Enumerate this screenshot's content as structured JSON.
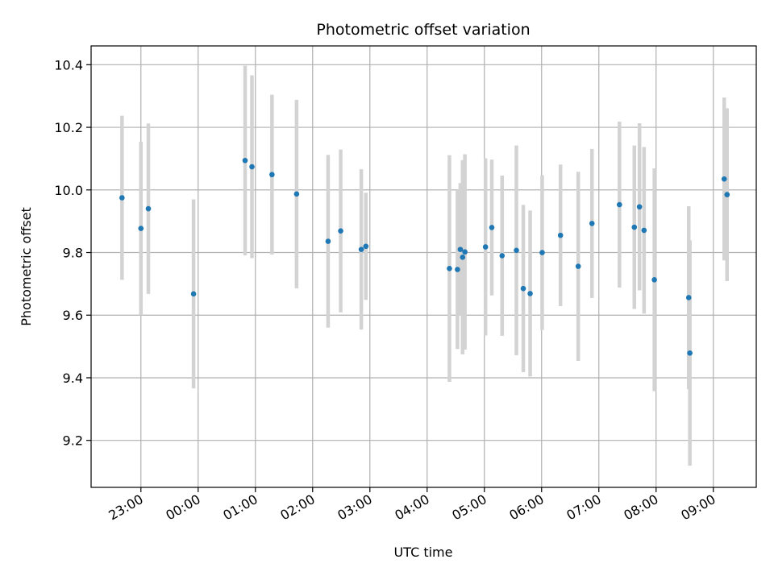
{
  "chart_data": {
    "type": "scatter",
    "title": "Photometric offset variation",
    "xlabel": "UTC time",
    "ylabel": "Photometric offset",
    "x_ticks": [
      "23:00",
      "00:00",
      "01:00",
      "02:00",
      "03:00",
      "04:00",
      "05:00",
      "06:00",
      "07:00",
      "08:00",
      "09:00"
    ],
    "xlim": [
      22.13,
      33.75
    ],
    "ylim": [
      9.05,
      10.46
    ],
    "y_ticks": [
      "9.2",
      "9.4",
      "9.6",
      "9.8",
      "10.0",
      "10.2",
      "10.4"
    ],
    "grid": true,
    "colors": {
      "point": "#1f77b4",
      "errorbar": "#d3d3d3",
      "grid": "#b0b0b0"
    },
    "points": [
      {
        "x": 22.67,
        "y": 9.975,
        "err": 0.262
      },
      {
        "x": 23.0,
        "y": 9.877,
        "err": 0.277
      },
      {
        "x": 23.13,
        "y": 9.94,
        "err": 0.272
      },
      {
        "x": 23.92,
        "y": 9.668,
        "err": 0.302
      },
      {
        "x": 24.82,
        "y": 10.094,
        "err": 0.303
      },
      {
        "x": 24.94,
        "y": 10.074,
        "err": 0.292
      },
      {
        "x": 25.29,
        "y": 10.049,
        "err": 0.255
      },
      {
        "x": 25.72,
        "y": 9.987,
        "err": 0.301
      },
      {
        "x": 26.27,
        "y": 9.836,
        "err": 0.276
      },
      {
        "x": 26.49,
        "y": 9.869,
        "err": 0.26
      },
      {
        "x": 26.85,
        "y": 9.81,
        "err": 0.256
      },
      {
        "x": 26.93,
        "y": 9.82,
        "err": 0.171
      },
      {
        "x": 28.39,
        "y": 9.749,
        "err": 0.362
      },
      {
        "x": 28.53,
        "y": 9.746,
        "err": 0.254
      },
      {
        "x": 28.58,
        "y": 9.81,
        "err": 0.212
      },
      {
        "x": 28.62,
        "y": 9.785,
        "err": 0.31
      },
      {
        "x": 28.66,
        "y": 9.802,
        "err": 0.312
      },
      {
        "x": 29.02,
        "y": 9.818,
        "err": 0.283
      },
      {
        "x": 29.13,
        "y": 9.88,
        "err": 0.217
      },
      {
        "x": 29.31,
        "y": 9.79,
        "err": 0.256
      },
      {
        "x": 29.56,
        "y": 9.807,
        "err": 0.335
      },
      {
        "x": 29.68,
        "y": 9.685,
        "err": 0.267
      },
      {
        "x": 29.8,
        "y": 9.669,
        "err": 0.265
      },
      {
        "x": 30.01,
        "y": 9.8,
        "err": 0.247
      },
      {
        "x": 30.33,
        "y": 9.855,
        "err": 0.226
      },
      {
        "x": 30.64,
        "y": 9.756,
        "err": 0.302
      },
      {
        "x": 30.88,
        "y": 9.893,
        "err": 0.238
      },
      {
        "x": 31.36,
        "y": 9.953,
        "err": 0.265
      },
      {
        "x": 31.62,
        "y": 9.881,
        "err": 0.261
      },
      {
        "x": 31.71,
        "y": 9.946,
        "err": 0.267
      },
      {
        "x": 31.79,
        "y": 9.871,
        "err": 0.266
      },
      {
        "x": 31.97,
        "y": 9.713,
        "err": 0.356
      },
      {
        "x": 32.57,
        "y": 9.656,
        "err": 0.292
      },
      {
        "x": 32.59,
        "y": 9.479,
        "err": 0.36
      },
      {
        "x": 33.19,
        "y": 10.035,
        "err": 0.26
      },
      {
        "x": 33.24,
        "y": 9.985,
        "err": 0.276
      }
    ]
  }
}
